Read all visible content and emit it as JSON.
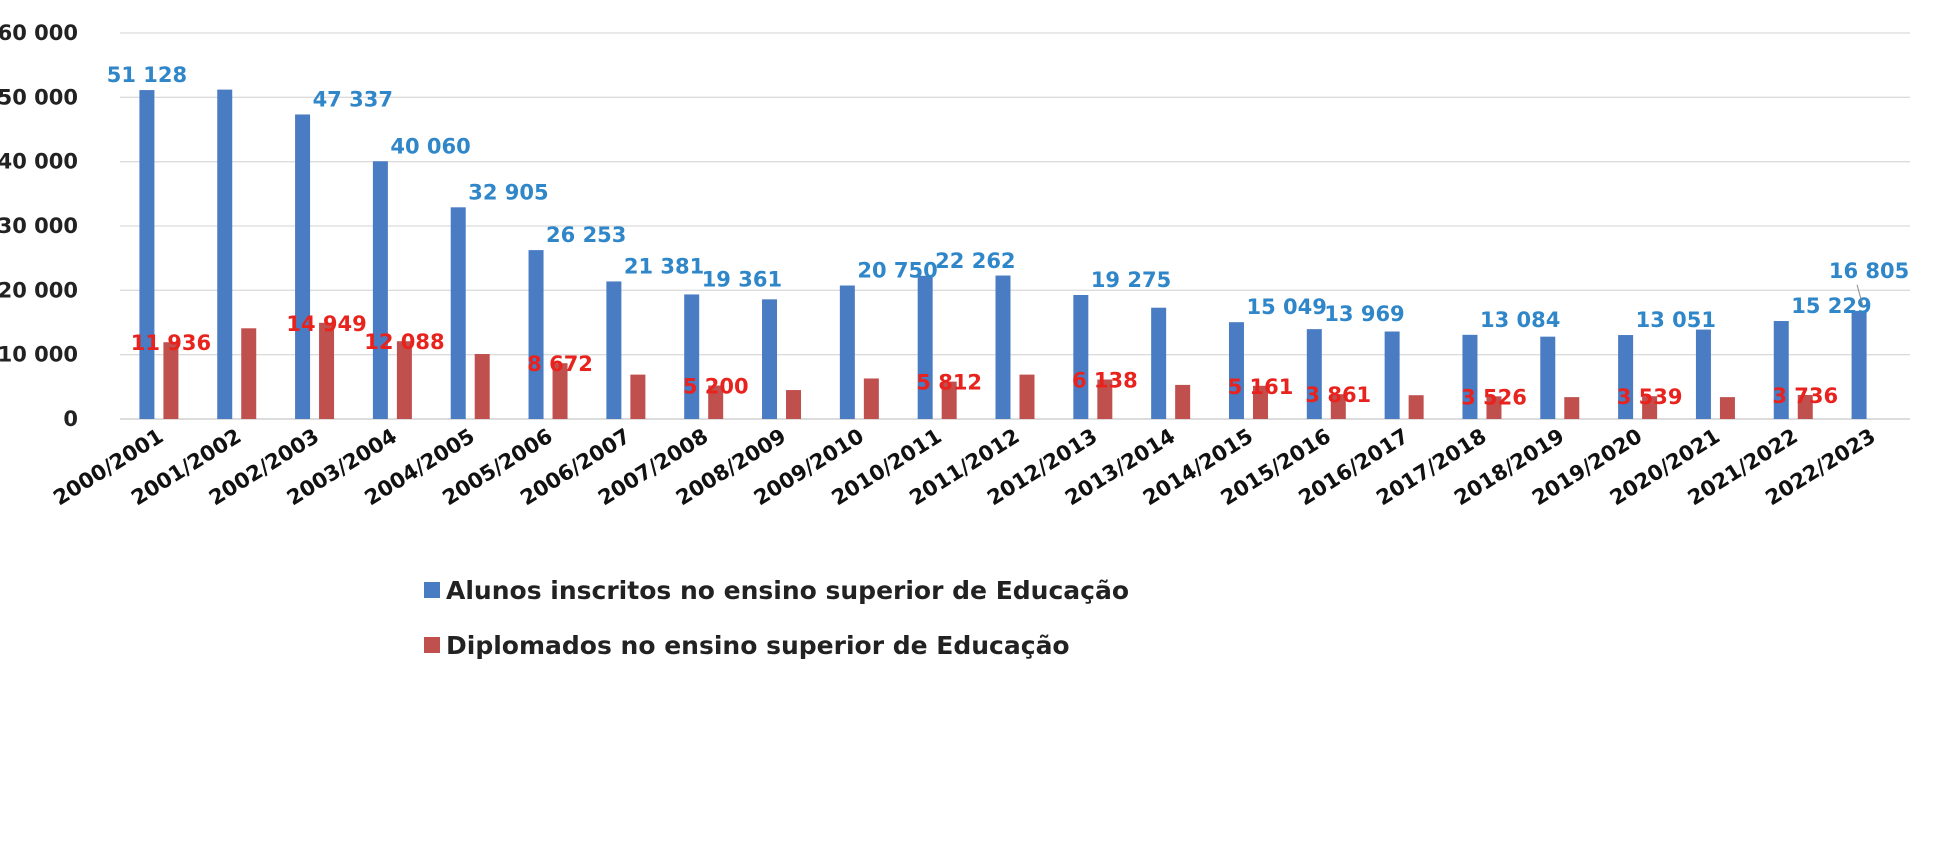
{
  "chart_data": {
    "type": "bar",
    "categories": [
      "2000/2001",
      "2001/2002",
      "2002/2003",
      "2003/2004",
      "2004/2005",
      "2005/2006",
      "2006/2007",
      "2007/2008",
      "2008/2009",
      "2009/2010",
      "2010/2011",
      "2011/2012",
      "2012/2013",
      "2013/2014",
      "2014/2015",
      "2015/2016",
      "2016/2017",
      "2017/2018",
      "2018/2019",
      "2019/2020",
      "2020/2021",
      "2021/2022",
      "2022/2023"
    ],
    "series": [
      {
        "name": "Alunos inscritos no ensino superior de Educação",
        "color": "#4a7cc4",
        "label_color": "#2f86c8",
        "values": [
          51128,
          51200,
          47337,
          40060,
          32905,
          26253,
          21381,
          19361,
          18600,
          20750,
          22262,
          22300,
          19275,
          17300,
          15049,
          13969,
          13600,
          13084,
          12800,
          13051,
          13900,
          15229,
          16805
        ],
        "data_labels": [
          "51 128",
          "",
          "47 337",
          "40 060",
          "32 905",
          "26 253",
          "21 381",
          "19 361",
          "",
          "20 750",
          "22 262",
          "",
          "19 275",
          "",
          "15 049",
          "13 969",
          "",
          "13 084",
          "",
          "13 051",
          "",
          "15 229",
          "16 805"
        ]
      },
      {
        "name": "Diplomados no ensino superior de Educação",
        "color": "#c0504d",
        "label_color": "#e8231e",
        "values": [
          11936,
          14100,
          14949,
          12088,
          10100,
          8672,
          6900,
          5200,
          4500,
          6300,
          5812,
          6900,
          6138,
          5300,
          5161,
          3861,
          3700,
          3526,
          3400,
          3539,
          3400,
          3736,
          null
        ],
        "data_labels": [
          "11 936",
          "",
          "14 949",
          "12 088",
          "",
          "8 672",
          "",
          "5 200",
          "",
          "",
          "5 812",
          "",
          "6 138",
          "",
          "5 161",
          "3 861",
          "",
          "3 526",
          "",
          "3 539",
          "",
          "3 736",
          ""
        ]
      }
    ],
    "y_ticks": [
      "0",
      "10 000",
      "20 000",
      "30 000",
      "40 000",
      "50 000",
      "60 000"
    ],
    "ylim": [
      0,
      60000
    ],
    "grid": true,
    "legend_position": "bottom"
  }
}
